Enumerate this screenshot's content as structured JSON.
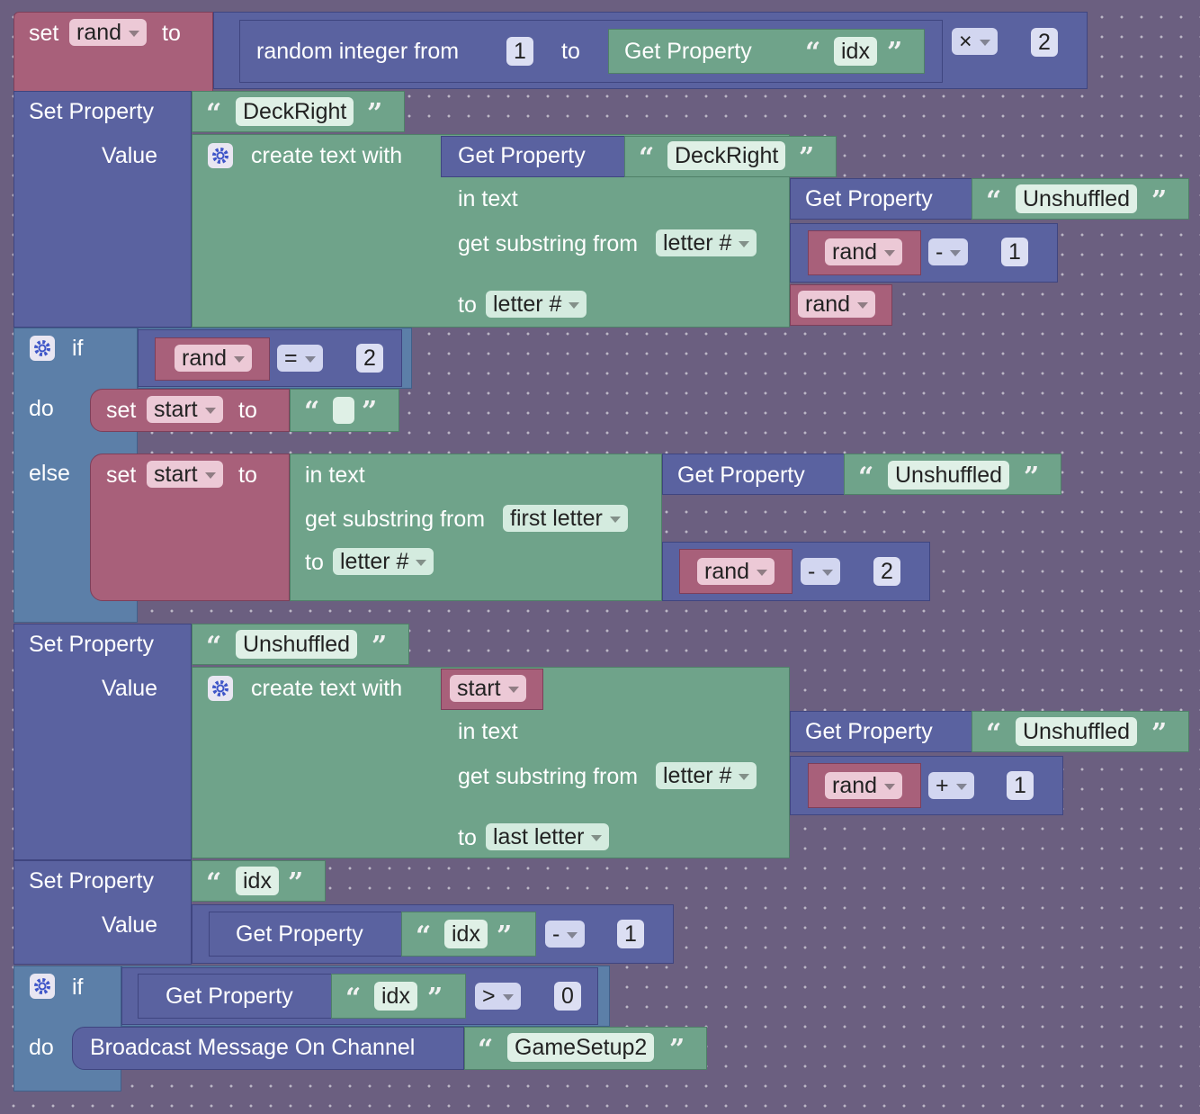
{
  "colors": {
    "background": "#6b5f80",
    "variable": "#a8607a",
    "math": "#5a62a0",
    "text": "#6fa38a",
    "control": "#5c7fa8"
  },
  "icons": {
    "mutator": "gear-icon",
    "quote_open": "open-quote-icon",
    "quote_close": "close-quote-icon",
    "dropdown": "chevron-down-icon"
  },
  "b1": {
    "set": "set",
    "var": "rand",
    "to": "to",
    "random": "random integer from",
    "n1": "1",
    "to2": "to",
    "get": "Get Property",
    "key": "idx",
    "op": "×",
    "n2": "2"
  },
  "b2": {
    "setprop": "Set Property",
    "key": "DeckRight",
    "value": "Value",
    "create": "create text with",
    "get1": "Get Property",
    "key1": "DeckRight",
    "intext": "in text",
    "get2": "Get Property",
    "key2": "Unshuffled",
    "substr": "get substring from",
    "from_dd": "letter #",
    "rand1": "rand",
    "op1": "-",
    "n1": "1",
    "to": "to",
    "to_dd": "letter #",
    "rand2": "rand"
  },
  "b3": {
    "if": "if",
    "rand": "rand",
    "op": "=",
    "n": "2",
    "do": "do",
    "set": "set",
    "var": "start",
    "to": "to",
    "else": "else",
    "set2": "set",
    "var2": "start",
    "to2": "to",
    "intext": "in text",
    "get": "Get Property",
    "key": "Unshuffled",
    "substr": "get substring from",
    "from_dd": "first letter",
    "to3": "to",
    "to_dd": "letter #",
    "rand2": "rand",
    "op2": "-",
    "n2": "2"
  },
  "b4": {
    "setprop": "Set Property",
    "key": "Unshuffled",
    "value": "Value",
    "create": "create text with",
    "start": "start",
    "intext": "in text",
    "get": "Get Property",
    "key2": "Unshuffled",
    "substr": "get substring from",
    "from_dd": "letter #",
    "rand": "rand",
    "op": "+",
    "n": "1",
    "to": "to",
    "to_dd": "last letter"
  },
  "b5": {
    "setprop": "Set Property",
    "key": "idx",
    "value": "Value",
    "get": "Get Property",
    "key2": "idx",
    "op": "-",
    "n": "1"
  },
  "b6": {
    "if": "if",
    "get": "Get Property",
    "key": "idx",
    "op": ">",
    "n": "0",
    "do": "do",
    "broadcast": "Broadcast Message On Channel",
    "channel": "GameSetup2"
  }
}
